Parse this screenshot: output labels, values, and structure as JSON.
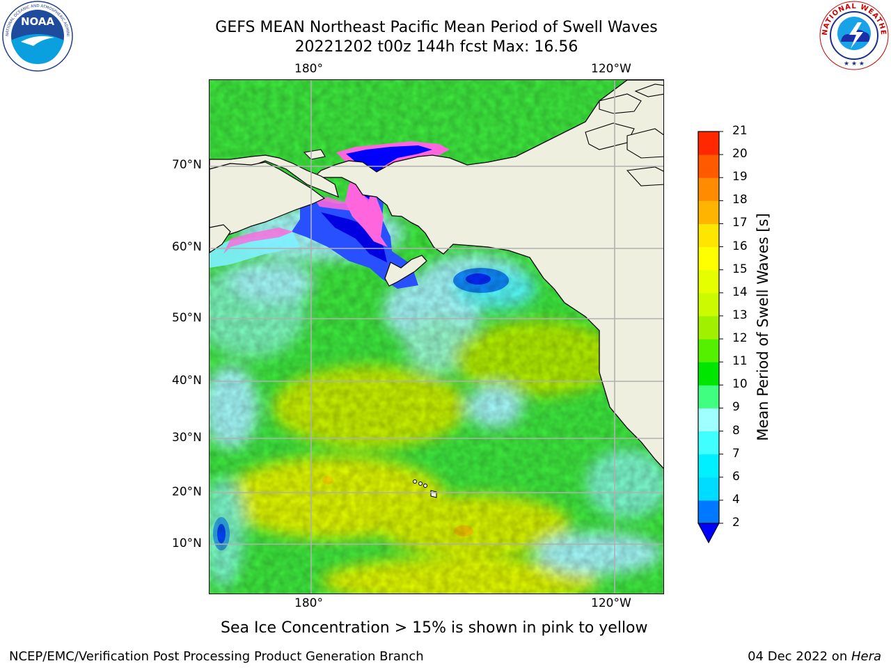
{
  "title": {
    "line1": "GEFS MEAN Northeast Pacific Mean Period of Swell Waves",
    "line2": "20221202 t00z 144h fcst   Max: 16.56"
  },
  "logos": {
    "left": {
      "name": "noaa-logo",
      "text": "NOAA",
      "ring_text": "NATIONAL OCEANIC AND ATMOSPHERIC ADMINISTRATION · U.S. DEPARTMENT OF COMMERCE"
    },
    "right": {
      "name": "nws-logo",
      "ring_text": "NATIONAL WEATHER SERVICE"
    }
  },
  "map": {
    "lon_labels_top": [
      "180°",
      "120°W"
    ],
    "lon_labels_bottom": [
      "180°",
      "120°W"
    ],
    "lat_labels": [
      "70°N",
      "60°N",
      "50°N",
      "40°N",
      "30°N",
      "20°N",
      "10°N"
    ],
    "land_color": "#efefdf",
    "grid_color": "#b0b0b0"
  },
  "colorbar": {
    "title": "Mean Period of Swell Waves [s]",
    "levels": [
      "2",
      "4",
      "6",
      "7",
      "8",
      "9",
      "10",
      "11",
      "12",
      "13",
      "14",
      "15",
      "16",
      "17",
      "18",
      "19",
      "20",
      "21"
    ],
    "tick_labels": [
      "2",
      "4",
      "6",
      "7",
      "8",
      "9",
      "10",
      "11",
      "12",
      "13",
      "14",
      "15",
      "16",
      "17",
      "18",
      "19",
      "20",
      "21"
    ],
    "colors": [
      "#0078ff",
      "#00dcff",
      "#00f0ff",
      "#40ffff",
      "#a0ffff",
      "#40ff80",
      "#00e600",
      "#55f000",
      "#a0f000",
      "#ccfa00",
      "#e6ff00",
      "#ffff00",
      "#ffe600",
      "#ffb400",
      "#ff8c00",
      "#ff5a00",
      "#ff2800",
      "#ff0000"
    ],
    "under_color": "#0000ff"
  },
  "caption": "Sea Ice Concentration > 15% is shown in pink to yellow",
  "footer": {
    "left": "NCEP/EMC/Verification Post Processing Product Generation Branch",
    "right_prefix": "04 Dec 2022 on ",
    "right_host": "Hera"
  }
}
